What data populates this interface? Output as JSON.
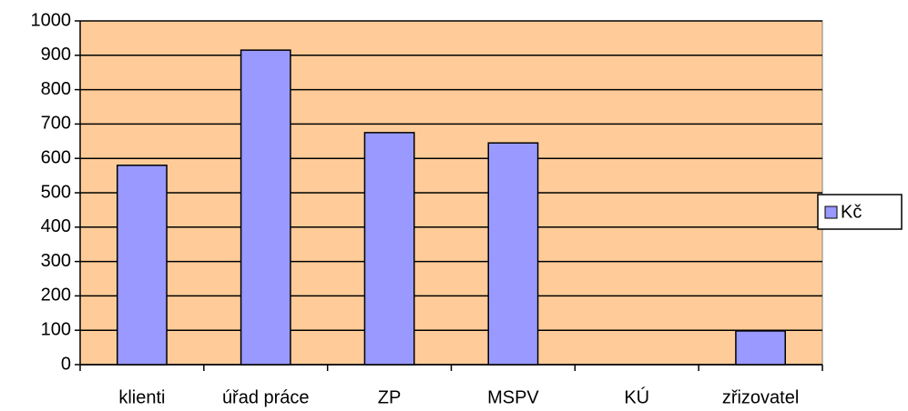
{
  "chart_data": {
    "type": "bar",
    "categories": [
      "klienti",
      "úřad práce",
      "ZP",
      "MSPV",
      "KÚ",
      "zřizovatel"
    ],
    "series": [
      {
        "name": "Kč",
        "color": "#9999ff",
        "values": [
          580,
          915,
          675,
          645,
          null,
          98
        ]
      }
    ],
    "ylim": [
      0,
      1000
    ],
    "yticks": [
      0,
      100,
      200,
      300,
      400,
      500,
      600,
      700,
      800,
      900,
      1000
    ],
    "grid": true,
    "legend": "right",
    "plot_background": "#ffcc99"
  }
}
